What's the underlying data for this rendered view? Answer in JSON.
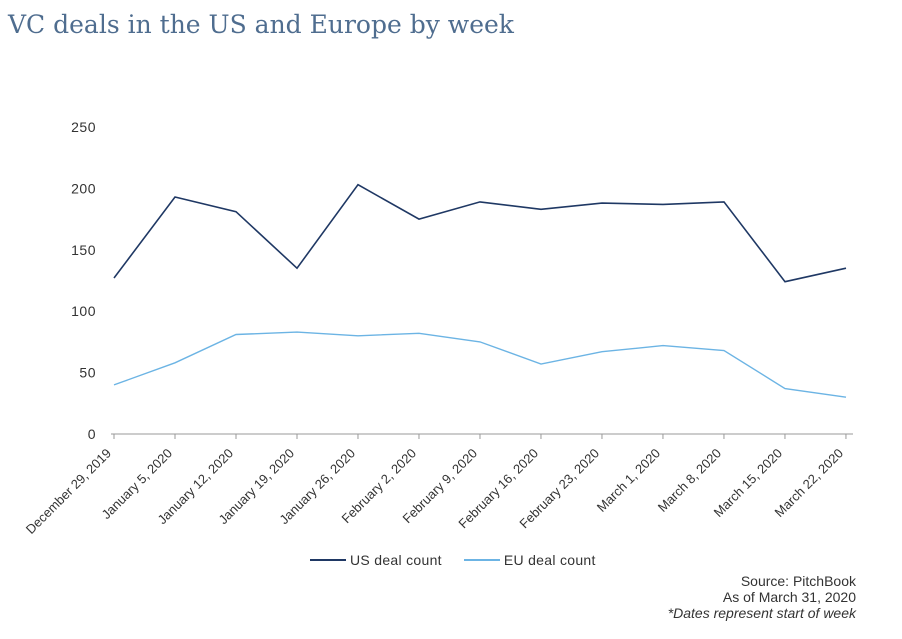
{
  "title": "VC deals in the US and Europe by week",
  "source": {
    "line1": "Source: PitchBook",
    "line2": "As of March 31, 2020",
    "line3": "*Dates represent start of week"
  },
  "chart_data": {
    "type": "line",
    "title": "VC deals in the US and Europe by week",
    "categories": [
      "December 29, 2019",
      "January 5, 2020",
      "January 12, 2020",
      "January 19, 2020",
      "January 26, 2020",
      "February 2, 2020",
      "February 9, 2020",
      "February 16, 2020",
      "February 23, 2020",
      "March 1, 2020",
      "March 8, 2020",
      "March 15, 2020",
      "March 22, 2020"
    ],
    "series": [
      {
        "name": "US deal count",
        "color": "#1f3864",
        "values": [
          127,
          193,
          181,
          135,
          203,
          175,
          189,
          183,
          188,
          187,
          189,
          124,
          135
        ]
      },
      {
        "name": "EU deal count",
        "color": "#6cb4e4",
        "values": [
          40,
          58,
          81,
          83,
          80,
          82,
          75,
          57,
          67,
          72,
          68,
          37,
          30
        ]
      }
    ],
    "ylim": [
      0,
      250
    ],
    "yticks": [
      0,
      50,
      100,
      150,
      200,
      250
    ],
    "grid": false,
    "legend_position": "bottom"
  }
}
